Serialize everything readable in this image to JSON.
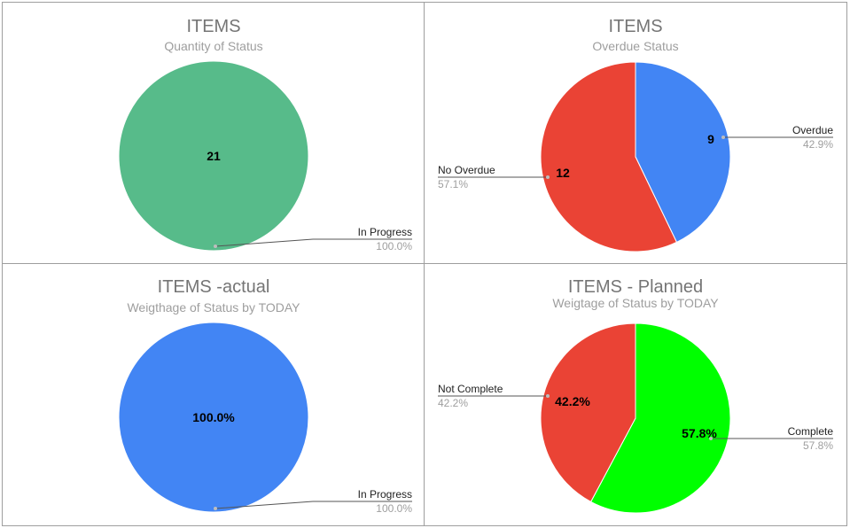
{
  "chart_data": [
    {
      "type": "pie",
      "title": "ITEMS",
      "subtitle": "Quantity of Status",
      "slices": [
        {
          "name": "In Progress",
          "value": 21,
          "percent": "100.0%",
          "inner_label": "21",
          "color": "#57bb8a"
        }
      ]
    },
    {
      "type": "pie",
      "title": "ITEMS",
      "subtitle": "Overdue Status",
      "slices": [
        {
          "name": "Overdue",
          "value": 9,
          "percent": "42.9%",
          "inner_label": "9",
          "color": "#4285f4"
        },
        {
          "name": "No Overdue",
          "value": 12,
          "percent": "57.1%",
          "inner_label": "12",
          "color": "#ea4335"
        }
      ]
    },
    {
      "type": "pie",
      "title": "ITEMS -actual",
      "subtitle": "Weigthage of Status by TODAY",
      "slices": [
        {
          "name": "In Progress",
          "value": 100.0,
          "percent": "100.0%",
          "inner_label": "100.0%",
          "color": "#4285f4"
        }
      ]
    },
    {
      "type": "pie",
      "title": "ITEMS - Planned",
      "subtitle": "Weigtage of Status by TODAY",
      "slices": [
        {
          "name": "Complete",
          "value": 57.8,
          "percent": "57.8%",
          "inner_label": "57.8%",
          "color": "#00ff00"
        },
        {
          "name": "Not Complete",
          "value": 42.2,
          "percent": "42.2%",
          "inner_label": "42.2%",
          "color": "#ea4335"
        }
      ]
    }
  ]
}
